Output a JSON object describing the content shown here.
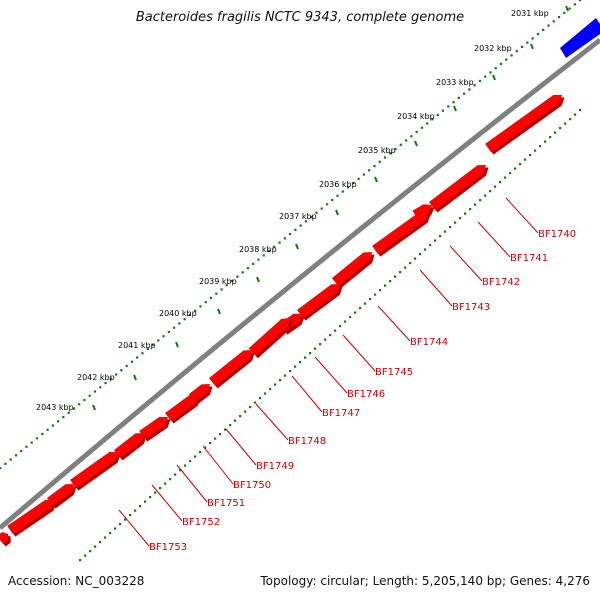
{
  "title": "Bacteroides fragilis NCTC 9343, complete genome",
  "footer": {
    "accession": "Accession: NC_003228",
    "summary": "Topology: circular; Length: 5,205,140 bp; Genes: 4,276"
  },
  "colors": {
    "gene_fill": "#ff0000",
    "gene_shade": "#b00000",
    "gene_label": "#cc0000",
    "backbone": "#808080",
    "feature_blue": "#0000ff",
    "tick_dots": "#117711"
  },
  "kbp_ticks": [
    "2031 kbp",
    "2032 kbp",
    "2033 kbp",
    "2034 kbp",
    "2035 kbp",
    "2036 kbp",
    "2037 kbp",
    "2038 kbp",
    "2039 kbp",
    "2040 kbp",
    "2041 kbp",
    "2042 kbp",
    "2043 kbp"
  ],
  "genes": [
    "BF1740",
    "BF1741",
    "BF1742",
    "BF1743",
    "BF1744",
    "BF1745",
    "BF1746",
    "BF1747",
    "BF1748",
    "BF1749",
    "BF1750",
    "BF1751",
    "BF1752",
    "BF1753"
  ]
}
